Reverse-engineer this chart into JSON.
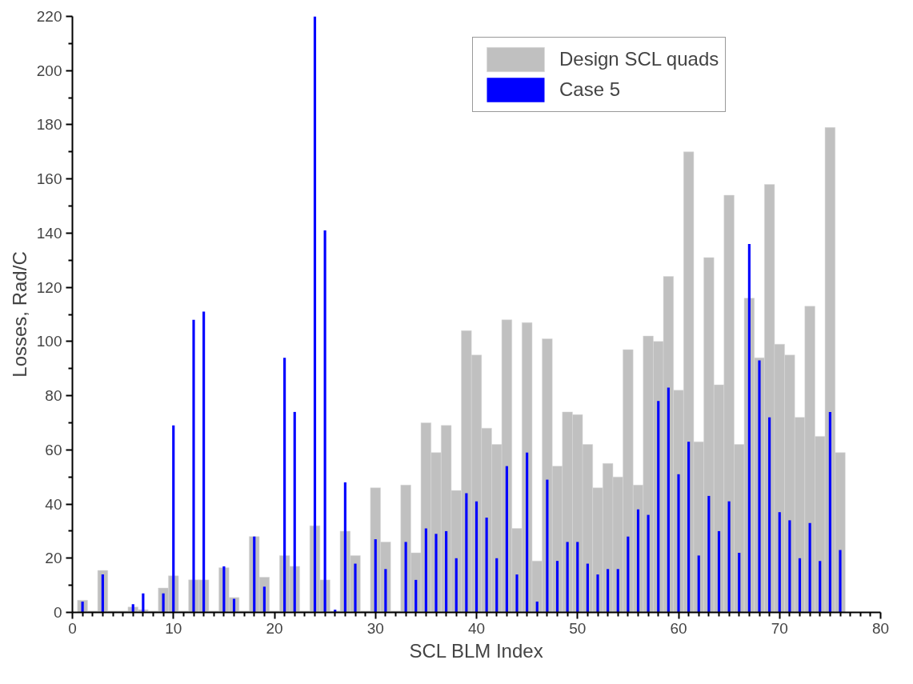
{
  "chart_data": {
    "type": "bar",
    "xlabel": "SCL BLM Index",
    "ylabel": "Losses, Rad/C",
    "x": [
      1,
      2,
      3,
      4,
      5,
      6,
      7,
      8,
      9,
      10,
      11,
      12,
      13,
      14,
      15,
      16,
      17,
      18,
      19,
      20,
      21,
      22,
      23,
      24,
      25,
      26,
      27,
      28,
      29,
      30,
      31,
      32,
      33,
      34,
      35,
      36,
      37,
      38,
      39,
      40,
      41,
      42,
      43,
      44,
      45,
      46,
      47,
      48,
      49,
      50,
      51,
      52,
      53,
      54,
      55,
      56,
      57,
      58,
      59,
      60,
      61,
      62,
      63,
      64,
      65,
      66,
      67,
      68,
      69,
      70,
      71,
      72,
      73,
      74,
      75,
      76
    ],
    "series": [
      {
        "name": "Design SCL quads",
        "color": "#c0c0c0",
        "values": [
          4.5,
          0.5,
          15.5,
          0.5,
          0.5,
          2,
          1,
          0.5,
          9,
          13.5,
          0.5,
          12,
          12,
          0.5,
          16.5,
          5.5,
          0.5,
          28,
          13,
          0.5,
          21,
          17,
          0.5,
          32,
          12,
          0.5,
          30,
          21,
          0.5,
          46,
          26,
          0.5,
          47,
          22,
          70,
          59,
          69,
          45,
          104,
          95,
          68,
          62,
          108,
          31,
          107,
          19,
          101,
          54,
          74,
          73,
          62,
          46,
          55,
          50,
          97,
          47,
          102,
          100,
          124,
          82,
          170,
          63,
          131,
          84,
          154,
          62,
          116,
          94,
          158,
          99,
          95,
          72,
          113,
          65,
          179,
          59
        ]
      },
      {
        "name": "Case 5",
        "color": "#0000ff",
        "values": [
          4,
          0,
          14,
          0,
          0,
          3,
          7,
          0,
          7,
          69,
          0,
          108,
          111,
          0,
          17,
          5,
          0,
          28,
          9.5,
          0,
          94,
          74,
          0,
          220,
          141,
          1,
          48,
          18,
          0,
          27,
          16,
          0,
          26,
          12,
          31,
          29,
          30,
          20,
          44,
          41,
          35,
          20,
          54,
          14,
          59,
          4,
          49,
          19,
          26,
          26,
          18,
          14,
          16,
          16,
          28,
          38,
          36,
          78,
          83,
          51,
          63,
          21,
          43,
          30,
          41,
          22,
          136,
          93,
          72,
          37,
          34,
          20,
          33,
          19,
          74,
          23
        ]
      }
    ],
    "xlim": [
      0,
      80
    ],
    "xticks": [
      0,
      10,
      20,
      30,
      40,
      50,
      60,
      70,
      80
    ],
    "ylim": [
      0,
      220
    ],
    "yticks": [
      0,
      20,
      40,
      60,
      80,
      100,
      120,
      140,
      160,
      180,
      200,
      220
    ],
    "legend": "top right",
    "grid": false
  }
}
